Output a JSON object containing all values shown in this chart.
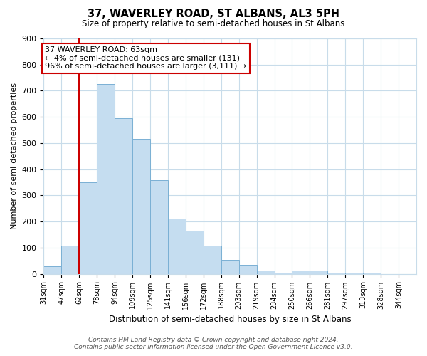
{
  "title": "37, WAVERLEY ROAD, ST ALBANS, AL3 5PH",
  "subtitle": "Size of property relative to semi-detached houses in St Albans",
  "xlabel": "Distribution of semi-detached houses by size in St Albans",
  "ylabel": "Number of semi-detached properties",
  "bin_labels": [
    "31sqm",
    "47sqm",
    "62sqm",
    "78sqm",
    "94sqm",
    "109sqm",
    "125sqm",
    "141sqm",
    "156sqm",
    "172sqm",
    "188sqm",
    "203sqm",
    "219sqm",
    "234sqm",
    "250sqm",
    "266sqm",
    "281sqm",
    "297sqm",
    "313sqm",
    "328sqm",
    "344sqm"
  ],
  "bar_values": [
    30,
    108,
    350,
    725,
    595,
    515,
    358,
    210,
    165,
    107,
    52,
    35,
    13,
    5,
    13,
    13,
    5,
    5,
    5,
    0,
    0
  ],
  "bar_color": "#c5ddf0",
  "bar_edge_color": "#7ab0d4",
  "vline_x_index": 2,
  "vline_color": "#cc0000",
  "annotation_text": "37 WAVERLEY ROAD: 63sqm\n← 4% of semi-detached houses are smaller (131)\n96% of semi-detached houses are larger (3,111) →",
  "annotation_box_color": "#ffffff",
  "annotation_box_edge_color": "#cc0000",
  "ylim": [
    0,
    900
  ],
  "yticks": [
    0,
    100,
    200,
    300,
    400,
    500,
    600,
    700,
    800,
    900
  ],
  "footer_line1": "Contains HM Land Registry data © Crown copyright and database right 2024.",
  "footer_line2": "Contains public sector information licensed under the Open Government Licence v3.0.",
  "bg_color": "#ffffff",
  "grid_color": "#c8dcea",
  "figwidth": 6.0,
  "figheight": 5.0,
  "dpi": 100
}
